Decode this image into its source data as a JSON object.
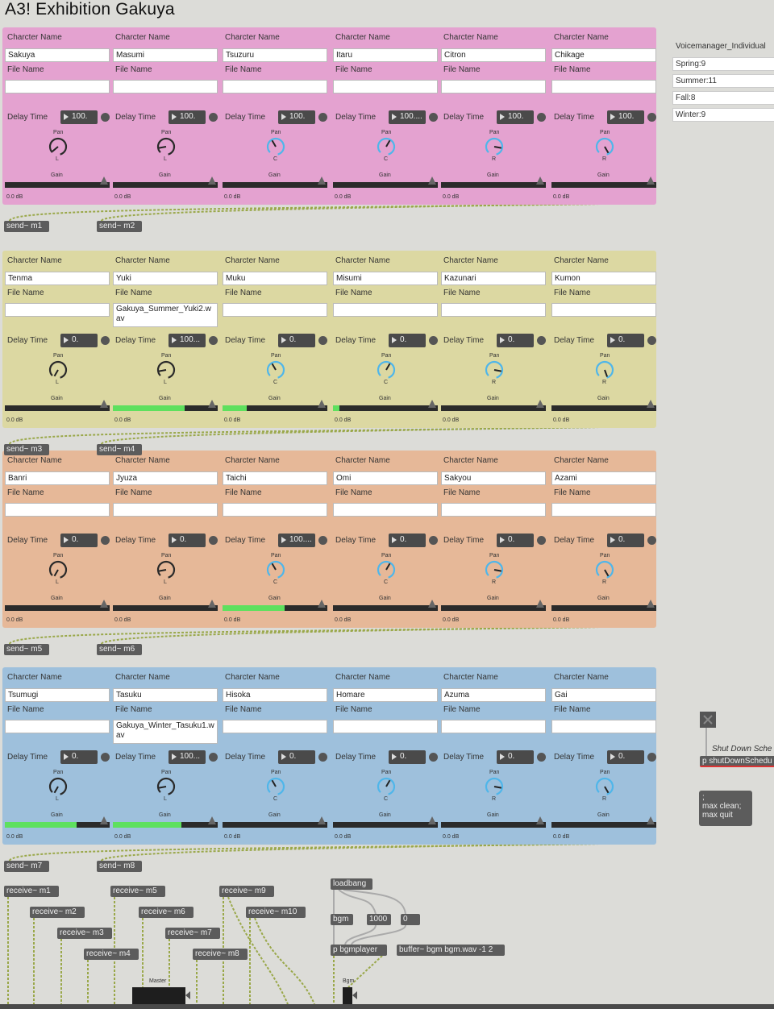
{
  "title": "A3! Exhibition Gakuya",
  "labels": {
    "character_name": "Charcter Name",
    "file_name": "File Name",
    "delay_time": "Delay Time",
    "pan": "Pan",
    "gain": "Gain",
    "db": "0.0 dB"
  },
  "groups": [
    {
      "color": "#e4a2d0",
      "send_left": "send~ m1",
      "send_right": "send~ m2",
      "slots": [
        {
          "name": "Sakuya",
          "file": "",
          "delay": "100.",
          "gain": 0,
          "pan": "L",
          "pan_angle": -130
        },
        {
          "name": "Masumi",
          "file": "",
          "delay": "100.",
          "gain": 0,
          "pan": "L",
          "pan_angle": -100
        },
        {
          "name": "Tsuzuru",
          "file": "",
          "delay": "100.",
          "gain": 0,
          "pan": "C",
          "pan_angle": -30
        },
        {
          "name": "Itaru",
          "file": "",
          "delay": "100....",
          "gain": 0,
          "pan": "C",
          "pan_angle": 30
        },
        {
          "name": "Citron",
          "file": "",
          "delay": "100.",
          "gain": 0,
          "pan": "R",
          "pan_angle": 100
        },
        {
          "name": "Chikage",
          "file": "",
          "delay": "100.",
          "gain": 0,
          "pan": "R",
          "pan_angle": 150
        }
      ]
    },
    {
      "color": "#dcd8a2",
      "send_left": "send~ m3",
      "send_right": "send~ m4",
      "slots": [
        {
          "name": "Tenma",
          "file": "",
          "delay": "0.",
          "gain": 0,
          "pan": "L",
          "pan_angle": -150
        },
        {
          "name": "Yuki",
          "file": "Gakuya_Summer_Yuki2.wav",
          "delay": "100...",
          "gain": 0.75,
          "pan": "L",
          "pan_angle": -100
        },
        {
          "name": "Muku",
          "file": "",
          "delay": "0.",
          "gain": 0.25,
          "pan": "C",
          "pan_angle": -30
        },
        {
          "name": "Misumi",
          "file": "",
          "delay": "0.",
          "gain": 0.07,
          "pan": "C",
          "pan_angle": 30
        },
        {
          "name": "Kazunari",
          "file": "",
          "delay": "0.",
          "gain": 0,
          "pan": "R",
          "pan_angle": 100
        },
        {
          "name": "Kumon",
          "file": "",
          "delay": "0.",
          "gain": 0,
          "pan": "R",
          "pan_angle": 160
        }
      ]
    },
    {
      "color": "#e6b898",
      "send_left": "send~ m5",
      "send_right": "send~ m6",
      "slots": [
        {
          "name": "Banri",
          "file": "",
          "delay": "0.",
          "gain": 0,
          "pan": "L",
          "pan_angle": -150
        },
        {
          "name": "Jyuza",
          "file": "",
          "delay": "0.",
          "gain": 0,
          "pan": "L",
          "pan_angle": -100
        },
        {
          "name": "Taichi",
          "file": "",
          "delay": "100....",
          "gain": 0.65,
          "pan": "C",
          "pan_angle": -30
        },
        {
          "name": "Omi",
          "file": "",
          "delay": "0.",
          "gain": 0,
          "pan": "C",
          "pan_angle": 30
        },
        {
          "name": "Sakyou",
          "file": "",
          "delay": "0.",
          "gain": 0,
          "pan": "R",
          "pan_angle": 100
        },
        {
          "name": "Azami",
          "file": "",
          "delay": "0.",
          "gain": 0,
          "pan": "R",
          "pan_angle": 150
        }
      ]
    },
    {
      "color": "#9ec0dc",
      "send_left": "send~ m7",
      "send_right": "send~ m8",
      "slots": [
        {
          "name": "Tsumugi",
          "file": "",
          "delay": "0.",
          "gain": 0.75,
          "pan": "L",
          "pan_angle": -150
        },
        {
          "name": "Tasuku",
          "file": "Gakuya_Winter_Tasuku1.wav",
          "delay": "100...",
          "gain": 0.72,
          "pan": "L",
          "pan_angle": -100
        },
        {
          "name": "Hisoka",
          "file": "",
          "delay": "0.",
          "gain": 0,
          "pan": "C",
          "pan_angle": -30
        },
        {
          "name": "Homare",
          "file": "",
          "delay": "0.",
          "gain": 0,
          "pan": "C",
          "pan_angle": 30
        },
        {
          "name": "Azuma",
          "file": "",
          "delay": "0.",
          "gain": 0,
          "pan": "R",
          "pan_angle": 100
        },
        {
          "name": "Gai",
          "file": "",
          "delay": "0.",
          "gain": 0,
          "pan": "R",
          "pan_angle": 150
        }
      ]
    }
  ],
  "voicemanager": {
    "title": "Voicemanager_Individual",
    "items": [
      "Spring:9",
      "Summer:11",
      "Fall:8",
      "Winter:9"
    ]
  },
  "shutdown": {
    "comment": "Shut Down Sche",
    "patcher": "p shutDownSchedu",
    "msg_line1": ";",
    "msg_line2": "max clean;",
    "msg_line3": "max quit"
  },
  "receives": [
    "receive~ m1",
    "receive~ m2",
    "receive~ m3",
    "receive~ m4",
    "receive~ m5",
    "receive~ m6",
    "receive~ m7",
    "receive~ m8",
    "receive~ m9",
    "receive~ m10"
  ],
  "bgm": {
    "loadbang": "loadbang",
    "bgm_msg": "bgm",
    "num1": "1000",
    "num2": "0",
    "player": "p bgmplayer",
    "buffer": "buffer~ bgm bgm.wav -1 2",
    "bgm_label": "Bgm"
  },
  "master_label": "Master"
}
